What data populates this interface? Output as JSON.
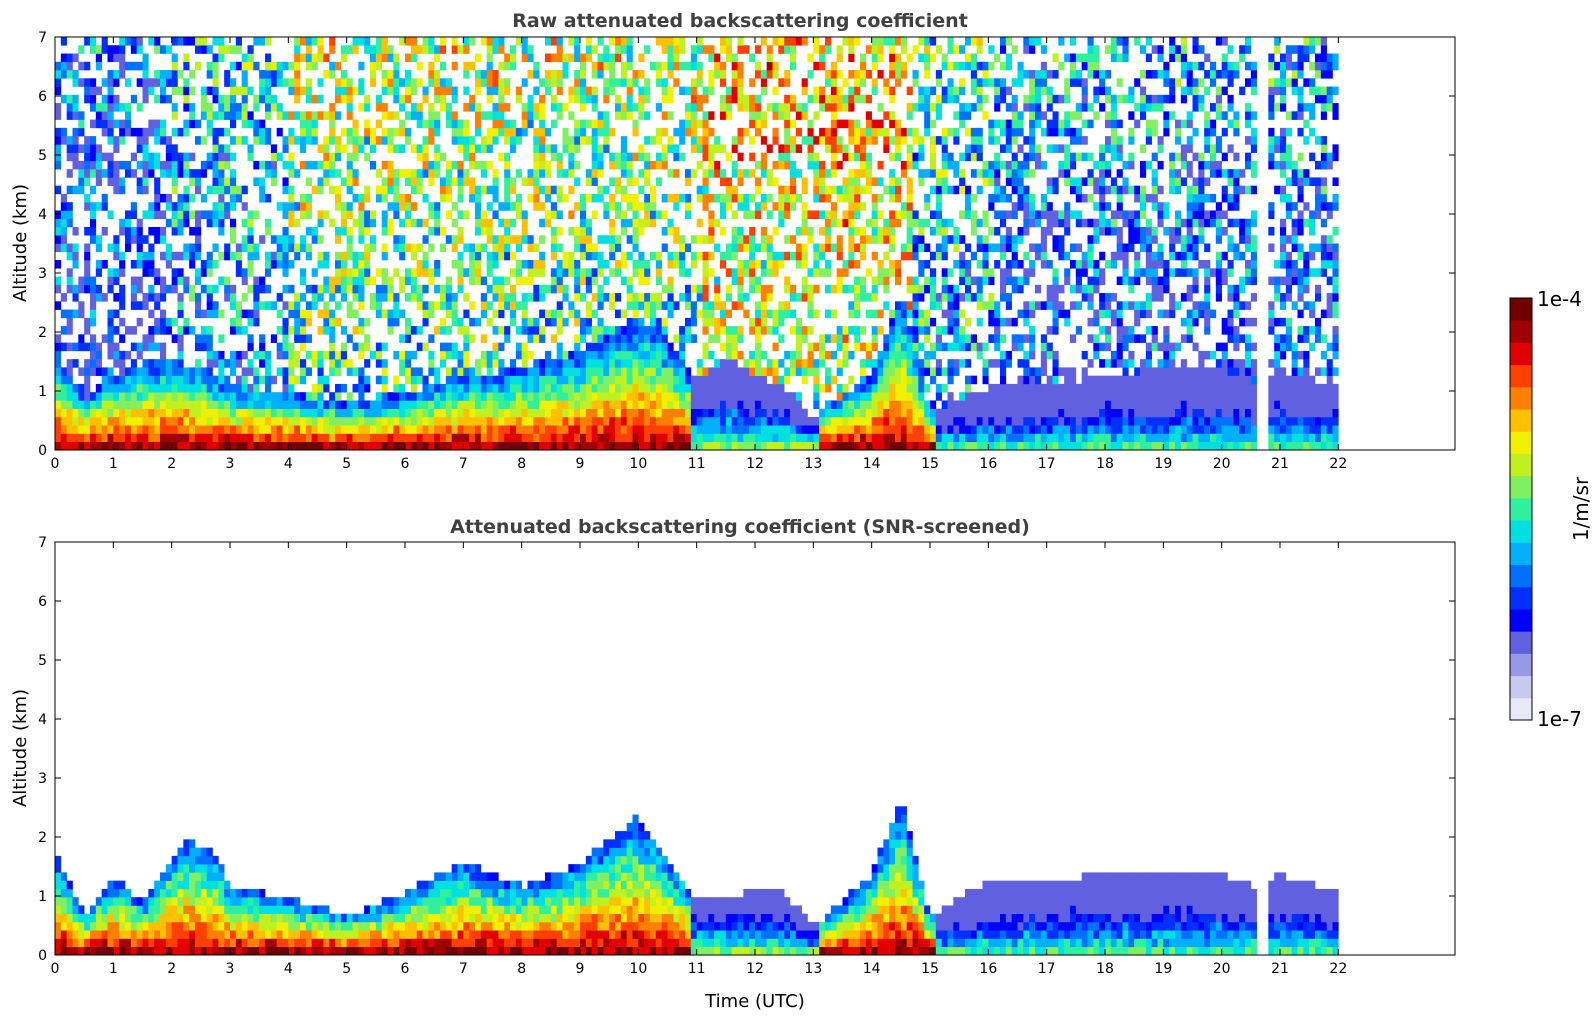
{
  "chart_data": [
    {
      "type": "heatmap",
      "title": "Raw attenuated backscattering coefficient",
      "xlabel": "",
      "ylabel": "Altitude (km)",
      "xlim": [
        0,
        24
      ],
      "ylim": [
        0,
        7
      ],
      "x_ticks": [
        "0",
        "1",
        "2",
        "3",
        "4",
        "5",
        "6",
        "7",
        "8",
        "9",
        "10",
        "11",
        "12",
        "13",
        "14",
        "15",
        "16",
        "17",
        "18",
        "19",
        "20",
        "21",
        "22"
      ],
      "y_ticks": [
        "0",
        "1",
        "2",
        "3",
        "4",
        "5",
        "6",
        "7"
      ],
      "data_extent_hours": [
        0,
        22
      ],
      "data_gap_hours": [
        20.65,
        20.8
      ],
      "boundary_layer_top_km": [
        [
          0,
          1.5
        ],
        [
          0.5,
          0.8
        ],
        [
          1,
          1.2
        ],
        [
          1.5,
          1.4
        ],
        [
          2,
          1.5
        ],
        [
          2.5,
          1.3
        ],
        [
          3,
          1.0
        ],
        [
          4,
          0.9
        ],
        [
          5,
          0.7
        ],
        [
          6,
          0.9
        ],
        [
          7,
          1.2
        ],
        [
          8,
          1.3
        ],
        [
          9,
          1.6
        ],
        [
          10,
          2.2
        ],
        [
          10.5,
          1.8
        ],
        [
          11,
          1.1
        ],
        [
          11.5,
          1.5
        ],
        [
          12,
          1.2
        ],
        [
          12.5,
          1.0
        ],
        [
          13,
          0.5
        ],
        [
          14,
          1.2
        ],
        [
          14.5,
          2.6
        ],
        [
          15,
          0.6
        ],
        [
          16,
          1.0
        ],
        [
          17,
          1.0
        ],
        [
          18,
          1.2
        ],
        [
          19,
          1.3
        ],
        [
          20,
          1.3
        ],
        [
          20.6,
          1.1
        ],
        [
          21,
          1.3
        ],
        [
          22,
          1.0
        ]
      ]
    },
    {
      "type": "heatmap",
      "title": "Attenuated backscattering coefficient (SNR-screened)",
      "xlabel": "Time (UTC)",
      "ylabel": "Altitude (km)",
      "xlim": [
        0,
        24
      ],
      "ylim": [
        0,
        7
      ],
      "x_ticks": [
        "0",
        "1",
        "2",
        "3",
        "4",
        "5",
        "6",
        "7",
        "8",
        "9",
        "10",
        "11",
        "12",
        "13",
        "14",
        "15",
        "16",
        "17",
        "18",
        "19",
        "20",
        "21",
        "22"
      ],
      "y_ticks": [
        "0",
        "1",
        "2",
        "3",
        "4",
        "5",
        "6",
        "7"
      ],
      "data_extent_hours": [
        0,
        22
      ],
      "data_gap_hours": [
        20.65,
        20.8
      ],
      "boundary_layer_top_km": [
        [
          0,
          1.7
        ],
        [
          0.5,
          0.6
        ],
        [
          1,
          1.3
        ],
        [
          1.5,
          0.8
        ],
        [
          2,
          1.6
        ],
        [
          2.3,
          1.9
        ],
        [
          2.8,
          1.6
        ],
        [
          3,
          1.1
        ],
        [
          4,
          0.9
        ],
        [
          5,
          0.6
        ],
        [
          6,
          1.0
        ],
        [
          7,
          1.5
        ],
        [
          8,
          1.1
        ],
        [
          9,
          1.5
        ],
        [
          10,
          2.3
        ],
        [
          10.5,
          1.6
        ],
        [
          11,
          0.9
        ],
        [
          12,
          1.0
        ],
        [
          12.5,
          1.0
        ],
        [
          13,
          0.4
        ],
        [
          14,
          1.3
        ],
        [
          14.5,
          2.6
        ],
        [
          15,
          0.6
        ],
        [
          16,
          1.2
        ],
        [
          17,
          1.2
        ],
        [
          18,
          1.3
        ],
        [
          19,
          1.4
        ],
        [
          20,
          1.3
        ],
        [
          20.6,
          1.1
        ],
        [
          21,
          1.3
        ],
        [
          22,
          1.0
        ]
      ]
    }
  ],
  "colorbar": {
    "max_label": "1e-4",
    "min_label": "1e-7",
    "unit_label": "1/m/sr",
    "colors": [
      "#e8e8f8",
      "#c8c8f0",
      "#9898e8",
      "#6060e0",
      "#0000ff",
      "#0030ff",
      "#0070ff",
      "#00b0ff",
      "#00e0e0",
      "#30f0a0",
      "#80f060",
      "#c0f020",
      "#f0f000",
      "#ffc000",
      "#ff8000",
      "#ff4000",
      "#e00000",
      "#a00000",
      "#700000"
    ]
  }
}
